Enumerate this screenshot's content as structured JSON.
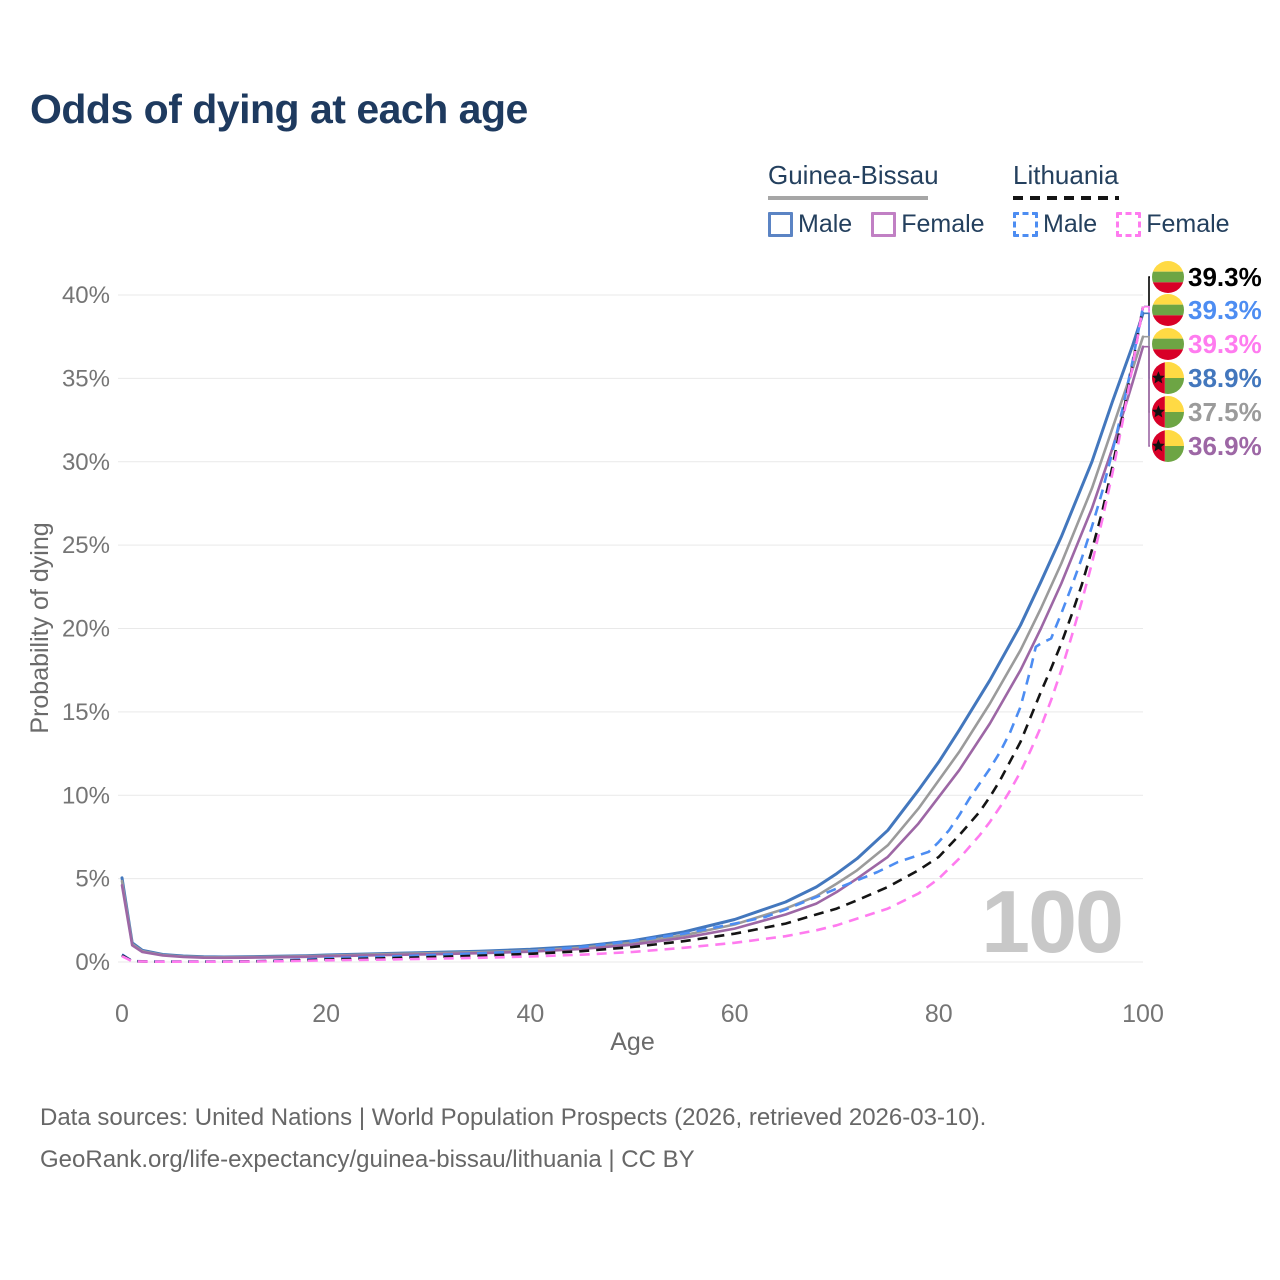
{
  "title": "Odds of dying at each age",
  "watermark": "100",
  "legend": {
    "groups": [
      {
        "name": "Guinea-Bissau",
        "line_style": "solid",
        "items": [
          {
            "label": "Male",
            "color": "#5b84c4"
          },
          {
            "label": "Female",
            "color": "#c180c4"
          }
        ]
      },
      {
        "name": "Lithuania",
        "line_style": "dashed",
        "items": [
          {
            "label": "Male",
            "color": "#4d8df2"
          },
          {
            "label": "Female",
            "color": "#ff7bef"
          }
        ]
      }
    ]
  },
  "footer": {
    "line1": "Data sources: United Nations | World Population Prospects (2026, retrieved 2026-03-10).",
    "line2": "GeoRank.org/life-expectancy/guinea-bissau/lithuania | CC BY"
  },
  "chart_data": {
    "type": "line",
    "title": "Odds of dying at each age",
    "xlabel": "Age",
    "ylabel": "Probability of dying",
    "xlim": [
      0,
      100
    ],
    "ylim": [
      0,
      40
    ],
    "x_ticks": [
      0,
      20,
      40,
      60,
      80,
      100
    ],
    "y_ticks": [
      0,
      5,
      10,
      15,
      20,
      25,
      30,
      35,
      40
    ],
    "grid": "horizontal",
    "legend_position": "top-right",
    "y_unit": "%",
    "series": [
      {
        "key": "gb_male",
        "name": "Guinea-Bissau Male",
        "color": "#4377bd",
        "dash": false,
        "width": 3,
        "points": [
          [
            0,
            5.05
          ],
          [
            1,
            1.15
          ],
          [
            2,
            0.7
          ],
          [
            4,
            0.45
          ],
          [
            6,
            0.36
          ],
          [
            8,
            0.31
          ],
          [
            10,
            0.3
          ],
          [
            12,
            0.31
          ],
          [
            15,
            0.34
          ],
          [
            18,
            0.38
          ],
          [
            20,
            0.42
          ],
          [
            25,
            0.5
          ],
          [
            30,
            0.57
          ],
          [
            35,
            0.65
          ],
          [
            40,
            0.76
          ],
          [
            45,
            0.95
          ],
          [
            50,
            1.28
          ],
          [
            55,
            1.8
          ],
          [
            60,
            2.55
          ],
          [
            65,
            3.6
          ],
          [
            68,
            4.5
          ],
          [
            70,
            5.3
          ],
          [
            72,
            6.2
          ],
          [
            75,
            7.9
          ],
          [
            78,
            10.3
          ],
          [
            80,
            12.0
          ],
          [
            82,
            13.9
          ],
          [
            85,
            16.9
          ],
          [
            88,
            20.2
          ],
          [
            90,
            22.8
          ],
          [
            92,
            25.5
          ],
          [
            95,
            30.0
          ],
          [
            97,
            33.6
          ],
          [
            99,
            37.0
          ],
          [
            100,
            38.9
          ]
        ]
      },
      {
        "key": "gb_total",
        "name": "Guinea-Bissau Both sexes",
        "color": "#9b9b9b",
        "dash": false,
        "width": 2.6,
        "points": [
          [
            0,
            4.85
          ],
          [
            1,
            1.08
          ],
          [
            2,
            0.65
          ],
          [
            4,
            0.42
          ],
          [
            6,
            0.33
          ],
          [
            8,
            0.29
          ],
          [
            10,
            0.28
          ],
          [
            12,
            0.29
          ],
          [
            15,
            0.31
          ],
          [
            18,
            0.35
          ],
          [
            20,
            0.38
          ],
          [
            25,
            0.46
          ],
          [
            30,
            0.52
          ],
          [
            35,
            0.59
          ],
          [
            40,
            0.69
          ],
          [
            45,
            0.86
          ],
          [
            50,
            1.15
          ],
          [
            55,
            1.6
          ],
          [
            60,
            2.25
          ],
          [
            65,
            3.2
          ],
          [
            68,
            3.95
          ],
          [
            70,
            4.7
          ],
          [
            72,
            5.5
          ],
          [
            75,
            7.0
          ],
          [
            78,
            9.2
          ],
          [
            80,
            10.9
          ],
          [
            82,
            12.6
          ],
          [
            85,
            15.5
          ],
          [
            88,
            18.7
          ],
          [
            90,
            21.2
          ],
          [
            92,
            23.9
          ],
          [
            95,
            28.4
          ],
          [
            97,
            32.0
          ],
          [
            99,
            35.6
          ],
          [
            100,
            37.5
          ]
        ]
      },
      {
        "key": "gb_female",
        "name": "Guinea-Bissau Female",
        "color": "#9d67a5",
        "dash": false,
        "width": 2.6,
        "points": [
          [
            0,
            4.6
          ],
          [
            1,
            1.0
          ],
          [
            2,
            0.6
          ],
          [
            4,
            0.39
          ],
          [
            6,
            0.3
          ],
          [
            8,
            0.26
          ],
          [
            10,
            0.25
          ],
          [
            12,
            0.26
          ],
          [
            15,
            0.28
          ],
          [
            18,
            0.31
          ],
          [
            20,
            0.34
          ],
          [
            25,
            0.41
          ],
          [
            30,
            0.46
          ],
          [
            35,
            0.53
          ],
          [
            40,
            0.62
          ],
          [
            45,
            0.78
          ],
          [
            50,
            1.04
          ],
          [
            55,
            1.45
          ],
          [
            60,
            2.0
          ],
          [
            65,
            2.85
          ],
          [
            68,
            3.5
          ],
          [
            70,
            4.2
          ],
          [
            72,
            5.0
          ],
          [
            75,
            6.3
          ],
          [
            78,
            8.3
          ],
          [
            80,
            9.9
          ],
          [
            82,
            11.5
          ],
          [
            85,
            14.3
          ],
          [
            88,
            17.5
          ],
          [
            90,
            20.0
          ],
          [
            92,
            22.7
          ],
          [
            95,
            27.2
          ],
          [
            97,
            30.8
          ],
          [
            99,
            34.8
          ],
          [
            100,
            36.9
          ]
        ]
      },
      {
        "key": "lt_male",
        "name": "Lithuania Male",
        "color": "#4d8df2",
        "dash": true,
        "width": 2.6,
        "points": [
          [
            0,
            0.45
          ],
          [
            1,
            0.06
          ],
          [
            3,
            0.03
          ],
          [
            5,
            0.03
          ],
          [
            10,
            0.03
          ],
          [
            13,
            0.05
          ],
          [
            15,
            0.08
          ],
          [
            18,
            0.16
          ],
          [
            20,
            0.22
          ],
          [
            25,
            0.3
          ],
          [
            30,
            0.4
          ],
          [
            35,
            0.52
          ],
          [
            40,
            0.66
          ],
          [
            45,
            0.9
          ],
          [
            50,
            1.25
          ],
          [
            55,
            1.7
          ],
          [
            60,
            2.3
          ],
          [
            63,
            2.7
          ],
          [
            65,
            3.15
          ],
          [
            68,
            3.9
          ],
          [
            70,
            4.4
          ],
          [
            72,
            4.9
          ],
          [
            74,
            5.4
          ],
          [
            76,
            6.0
          ],
          [
            78,
            6.4
          ],
          [
            79,
            6.6
          ],
          [
            80,
            7.2
          ],
          [
            81,
            7.9
          ],
          [
            82,
            8.8
          ],
          [
            83,
            9.8
          ],
          [
            84,
            10.7
          ],
          [
            85,
            11.6
          ],
          [
            86,
            12.6
          ],
          [
            87,
            13.8
          ],
          [
            88,
            15.3
          ],
          [
            89,
            17.6
          ],
          [
            89.5,
            18.9
          ],
          [
            90,
            19.1
          ],
          [
            91,
            19.4
          ],
          [
            92,
            20.9
          ],
          [
            93,
            22.5
          ],
          [
            94,
            24.2
          ],
          [
            95,
            26.1
          ],
          [
            96,
            28.2
          ],
          [
            97,
            30.6
          ],
          [
            98,
            33.2
          ],
          [
            99,
            36.1
          ],
          [
            100,
            39.3
          ]
        ]
      },
      {
        "key": "lt_total",
        "name": "Lithuania Both sexes",
        "color": "#141414",
        "dash": true,
        "width": 2.6,
        "points": [
          [
            0,
            0.4
          ],
          [
            1,
            0.05
          ],
          [
            3,
            0.02
          ],
          [
            5,
            0.02
          ],
          [
            10,
            0.02
          ],
          [
            13,
            0.04
          ],
          [
            15,
            0.06
          ],
          [
            18,
            0.11
          ],
          [
            20,
            0.15
          ],
          [
            25,
            0.21
          ],
          [
            30,
            0.29
          ],
          [
            35,
            0.38
          ],
          [
            40,
            0.49
          ],
          [
            45,
            0.65
          ],
          [
            50,
            0.9
          ],
          [
            55,
            1.25
          ],
          [
            60,
            1.7
          ],
          [
            65,
            2.3
          ],
          [
            68,
            2.85
          ],
          [
            70,
            3.2
          ],
          [
            72,
            3.7
          ],
          [
            75,
            4.5
          ],
          [
            78,
            5.5
          ],
          [
            80,
            6.3
          ],
          [
            82,
            7.6
          ],
          [
            84,
            9.0
          ],
          [
            85,
            9.9
          ],
          [
            86,
            10.9
          ],
          [
            88,
            13.2
          ],
          [
            90,
            16.2
          ],
          [
            91,
            17.6
          ],
          [
            92,
            19.1
          ],
          [
            93,
            20.8
          ],
          [
            94,
            22.6
          ],
          [
            95,
            24.7
          ],
          [
            96,
            27.0
          ],
          [
            97,
            29.7
          ],
          [
            98,
            32.7
          ],
          [
            99,
            35.9
          ],
          [
            100,
            39.3
          ]
        ]
      },
      {
        "key": "lt_female",
        "name": "Lithuania Female",
        "color": "#ff7bef",
        "dash": true,
        "width": 2.6,
        "points": [
          [
            0,
            0.35
          ],
          [
            1,
            0.04
          ],
          [
            3,
            0.02
          ],
          [
            5,
            0.02
          ],
          [
            10,
            0.02
          ],
          [
            13,
            0.03
          ],
          [
            15,
            0.04
          ],
          [
            18,
            0.07
          ],
          [
            20,
            0.1
          ],
          [
            25,
            0.14
          ],
          [
            30,
            0.19
          ],
          [
            35,
            0.25
          ],
          [
            40,
            0.33
          ],
          [
            45,
            0.44
          ],
          [
            50,
            0.6
          ],
          [
            55,
            0.85
          ],
          [
            60,
            1.15
          ],
          [
            65,
            1.55
          ],
          [
            68,
            1.9
          ],
          [
            70,
            2.2
          ],
          [
            72,
            2.6
          ],
          [
            75,
            3.2
          ],
          [
            78,
            4.1
          ],
          [
            80,
            5.0
          ],
          [
            82,
            6.2
          ],
          [
            84,
            7.6
          ],
          [
            85,
            8.4
          ],
          [
            86,
            9.3
          ],
          [
            87,
            10.3
          ],
          [
            88,
            11.4
          ],
          [
            89,
            12.7
          ],
          [
            90,
            14.1
          ],
          [
            91,
            15.7
          ],
          [
            92,
            17.5
          ],
          [
            93,
            19.5
          ],
          [
            94,
            21.6
          ],
          [
            95,
            23.9
          ],
          [
            96,
            26.5
          ],
          [
            97,
            29.3
          ],
          [
            98,
            32.4
          ],
          [
            99,
            35.8
          ],
          [
            100,
            39.3
          ]
        ]
      }
    ],
    "end_labels": [
      {
        "value": "39.3%",
        "color": "#000000",
        "flag": "lithuania",
        "series": "lt_total"
      },
      {
        "value": "39.3%",
        "color": "#4d8df2",
        "flag": "lithuania",
        "series": "lt_male"
      },
      {
        "value": "39.3%",
        "color": "#ff7bef",
        "flag": "lithuania",
        "series": "lt_female"
      },
      {
        "value": "38.9%",
        "color": "#4377bd",
        "flag": "guinea-bissau",
        "series": "gb_male"
      },
      {
        "value": "37.5%",
        "color": "#9b9b9b",
        "flag": "guinea-bissau",
        "series": "gb_total"
      },
      {
        "value": "36.9%",
        "color": "#9d67a5",
        "flag": "guinea-bissau",
        "series": "gb_female"
      }
    ]
  }
}
